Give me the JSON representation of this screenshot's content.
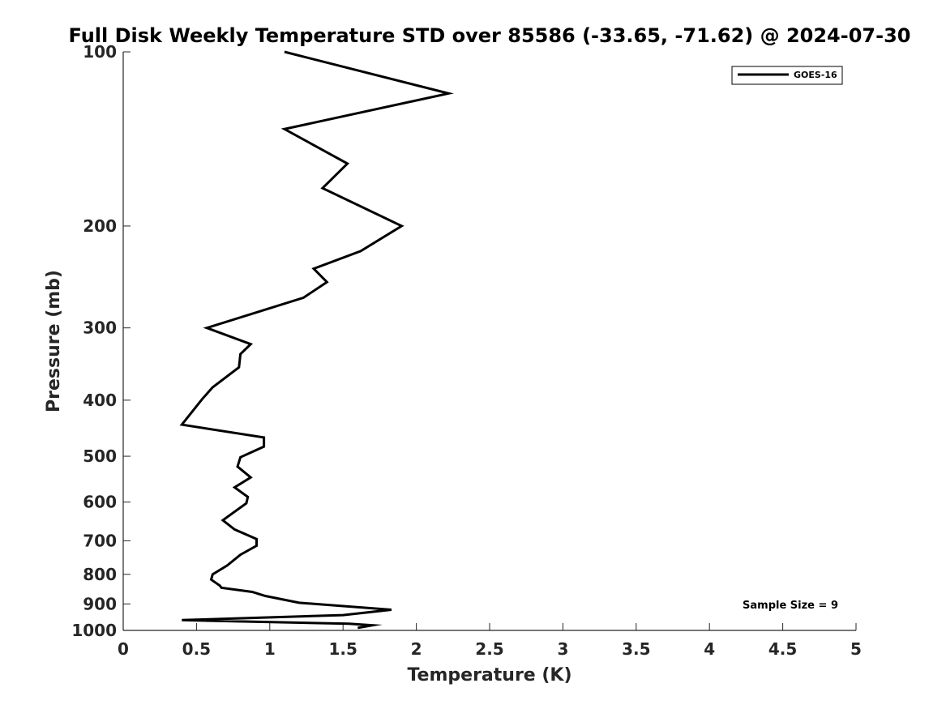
{
  "chart_data": {
    "type": "line",
    "title": "Full Disk Weekly Temperature STD over 85586 (-33.65, -71.62) @ 2024-07-30",
    "xlabel": "Temperature (K)",
    "ylabel": "Pressure (mb)",
    "xlim": [
      0,
      5
    ],
    "ylim": [
      100,
      1000
    ],
    "y_scale": "log",
    "y_reversed": true,
    "x_ticks": [
      0,
      0.5,
      1,
      1.5,
      2,
      2.5,
      3,
      3.5,
      4,
      4.5,
      5
    ],
    "x_tick_labels": [
      "0",
      "0.5",
      "1",
      "1.5",
      "2",
      "2.5",
      "3",
      "3.5",
      "4",
      "4.5",
      "5"
    ],
    "y_ticks": [
      100,
      200,
      300,
      400,
      500,
      600,
      700,
      800,
      900,
      1000
    ],
    "y_tick_labels": [
      "100",
      "200",
      "300",
      "400",
      "500",
      "600",
      "700",
      "800",
      "900",
      "1000"
    ],
    "grid": false,
    "legend_position": "top-right",
    "annotation": "Sample Size = 9",
    "series": [
      {
        "name": "GOES-16",
        "color": "#000000",
        "points": [
          [
            1.1,
            100
          ],
          [
            2.22,
            118
          ],
          [
            1.1,
            136
          ],
          [
            1.53,
            156
          ],
          [
            1.36,
            172
          ],
          [
            1.9,
            200
          ],
          [
            1.62,
            221
          ],
          [
            1.3,
            237
          ],
          [
            1.39,
            250
          ],
          [
            1.23,
            266
          ],
          [
            0.57,
            300
          ],
          [
            0.87,
            320
          ],
          [
            0.8,
            333
          ],
          [
            0.79,
            351
          ],
          [
            0.61,
            380
          ],
          [
            0.54,
            398
          ],
          [
            0.4,
            441
          ],
          [
            0.96,
            464
          ],
          [
            0.96,
            481
          ],
          [
            0.8,
            502
          ],
          [
            0.78,
            521
          ],
          [
            0.87,
            544
          ],
          [
            0.76,
            566
          ],
          [
            0.85,
            588
          ],
          [
            0.84,
            603
          ],
          [
            0.68,
            645
          ],
          [
            0.76,
            669
          ],
          [
            0.91,
            695
          ],
          [
            0.91,
            714
          ],
          [
            0.8,
            740
          ],
          [
            0.71,
            772
          ],
          [
            0.61,
            800
          ],
          [
            0.6,
            817
          ],
          [
            0.66,
            837
          ],
          [
            0.67,
            844
          ],
          [
            0.88,
            858
          ],
          [
            0.97,
            872
          ],
          [
            1.2,
            896
          ],
          [
            1.83,
            921
          ],
          [
            1.5,
            941
          ],
          [
            0.4,
            960
          ],
          [
            1.54,
            974
          ],
          [
            1.7,
            980
          ],
          [
            1.6,
            990
          ]
        ]
      }
    ]
  }
}
